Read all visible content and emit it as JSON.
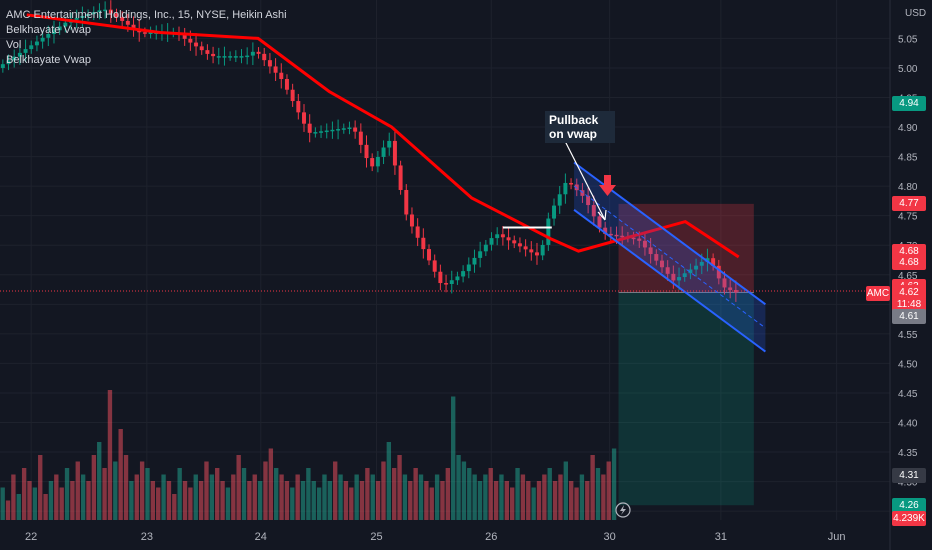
{
  "legend": {
    "title": "AMC Entertainment Holdings, Inc., 15, NYSE, Heikin Ashi",
    "ind1": "Belkhayate Vwap",
    "ind2": "Vol",
    "ind3": "Belkhayate Vwap"
  },
  "annotation": {
    "text": "Pullback on vwap"
  },
  "price_axis": {
    "currency": "USD"
  },
  "symbol_tag": "AMC",
  "price_tags": [
    {
      "value": "4.94",
      "price": 4.94,
      "color": "#089981"
    },
    {
      "value": "4.77",
      "price": 4.77,
      "color": "#f23645"
    },
    {
      "value": "4.68",
      "price": 4.69,
      "color": "#f23645"
    },
    {
      "value": "4.68",
      "price": 4.67,
      "color": "#f23645"
    },
    {
      "value": "4.63",
      "price": 4.63,
      "color": "#f23645"
    },
    {
      "value": "4.62",
      "price": 4.62,
      "color": "#f23645"
    },
    {
      "value": "11:48",
      "price": 4.6,
      "color": "#f23645"
    },
    {
      "value": "4.61",
      "price": 4.58,
      "color": "#787b86"
    },
    {
      "value": "4.31",
      "price": 4.31,
      "color": "#363a45"
    },
    {
      "value": "4.26",
      "price": 4.26,
      "color": "#089981"
    },
    {
      "value": "4.239K",
      "price": 4.237,
      "color": "#f23645"
    }
  ],
  "chart_data": {
    "type": "candlestick",
    "title": "AMC Entertainment Holdings, Inc., 15, NYSE, Heikin Ashi",
    "y_ticks": [
      "5.05",
      "5.00",
      "4.95",
      "4.90",
      "4.85",
      "4.80",
      "4.75",
      "4.70",
      "4.65",
      "4.60",
      "4.55",
      "4.50",
      "4.45",
      "4.40",
      "4.35",
      "4.30",
      "4.25"
    ],
    "y_tick_values": [
      5.05,
      5.0,
      4.95,
      4.9,
      4.85,
      4.8,
      4.75,
      4.7,
      4.65,
      4.6,
      4.55,
      4.5,
      4.45,
      4.4,
      4.35,
      4.3,
      4.25
    ],
    "x_ticks": [
      "22",
      "23",
      "24",
      "25",
      "26",
      "30",
      "31",
      "Jun"
    ],
    "ylim": [
      4.235,
      5.115
    ],
    "key_prices": [
      {
        "x": 0.0,
        "y": 5.0
      },
      {
        "x": 0.08,
        "y": 5.08
      },
      {
        "x": 0.12,
        "y": 5.1
      },
      {
        "x": 0.16,
        "y": 5.06
      },
      {
        "x": 0.2,
        "y": 5.06
      },
      {
        "x": 0.24,
        "y": 5.02
      },
      {
        "x": 0.28,
        "y": 5.02
      },
      {
        "x": 0.29,
        "y": 5.03
      },
      {
        "x": 0.32,
        "y": 4.98
      },
      {
        "x": 0.35,
        "y": 4.89
      },
      {
        "x": 0.4,
        "y": 4.9
      },
      {
        "x": 0.42,
        "y": 4.83
      },
      {
        "x": 0.44,
        "y": 4.88
      },
      {
        "x": 0.46,
        "y": 4.75
      },
      {
        "x": 0.5,
        "y": 4.63
      },
      {
        "x": 0.52,
        "y": 4.65
      },
      {
        "x": 0.56,
        "y": 4.72
      },
      {
        "x": 0.61,
        "y": 4.68
      },
      {
        "x": 0.62,
        "y": 4.75
      },
      {
        "x": 0.64,
        "y": 4.81
      },
      {
        "x": 0.66,
        "y": 4.78
      },
      {
        "x": 0.68,
        "y": 4.72
      },
      {
        "x": 0.72,
        "y": 4.71
      },
      {
        "x": 0.76,
        "y": 4.64
      },
      {
        "x": 0.78,
        "y": 4.66
      },
      {
        "x": 0.8,
        "y": 4.68
      },
      {
        "x": 0.815,
        "y": 4.63
      },
      {
        "x": 0.83,
        "y": 4.62
      }
    ],
    "vwap_line": [
      {
        "x": 0.03,
        "y": 5.09
      },
      {
        "x": 0.18,
        "y": 5.06
      },
      {
        "x": 0.29,
        "y": 5.05
      },
      {
        "x": 0.37,
        "y": 4.96
      },
      {
        "x": 0.44,
        "y": 4.9
      },
      {
        "x": 0.53,
        "y": 4.78
      },
      {
        "x": 0.62,
        "y": 4.71
      },
      {
        "x": 0.65,
        "y": 4.69
      },
      {
        "x": 0.77,
        "y": 4.74
      },
      {
        "x": 0.8,
        "y": 4.71
      },
      {
        "x": 0.83,
        "y": 4.68
      }
    ],
    "volume_profile": [
      0.25,
      0.15,
      0.35,
      0.2,
      0.4,
      0.3,
      0.25,
      0.5,
      0.2,
      0.3,
      0.35,
      0.25,
      0.4,
      0.3,
      0.45,
      0.35,
      0.3,
      0.5,
      0.6,
      0.4,
      1.0,
      0.45,
      0.7,
      0.5,
      0.3,
      0.35,
      0.45,
      0.4,
      0.3,
      0.25,
      0.35,
      0.3,
      0.2,
      0.4,
      0.3,
      0.25,
      0.35,
      0.3,
      0.45,
      0.35,
      0.4,
      0.3,
      0.25,
      0.35,
      0.5,
      0.4,
      0.3,
      0.35,
      0.3,
      0.45,
      0.55,
      0.4,
      0.35,
      0.3,
      0.25,
      0.35,
      0.3,
      0.4,
      0.3,
      0.25,
      0.35,
      0.3,
      0.45,
      0.35,
      0.3,
      0.25,
      0.35,
      0.3,
      0.4,
      0.35,
      0.3,
      0.45,
      0.6,
      0.4,
      0.5,
      0.35,
      0.3,
      0.4,
      0.35,
      0.3,
      0.25,
      0.35,
      0.3,
      0.4,
      0.95,
      0.5,
      0.45,
      0.4,
      0.35,
      0.3,
      0.35,
      0.4,
      0.3,
      0.35,
      0.3,
      0.25,
      0.4,
      0.35,
      0.3,
      0.25,
      0.3,
      0.35,
      0.4,
      0.3,
      0.35,
      0.45,
      0.3,
      0.25,
      0.35,
      0.3,
      0.5,
      0.4,
      0.35,
      0.45,
      0.55
    ],
    "trade_setup": {
      "entry": 4.62,
      "stop": 4.77,
      "target": 4.26,
      "stop_color": "#f23645",
      "target_color": "#089981"
    },
    "channel": {
      "upper_start": {
        "x": 0.645,
        "y": 4.84
      },
      "upper_end": {
        "x": 0.86,
        "y": 4.6
      },
      "lower_start": {
        "x": 0.645,
        "y": 4.76
      },
      "lower_end": {
        "x": 0.86,
        "y": 4.52
      },
      "color": "#2962ff"
    },
    "colors": {
      "up": "#089981",
      "down": "#f23645",
      "vwap": "#ff0000",
      "background": "#131722"
    }
  }
}
